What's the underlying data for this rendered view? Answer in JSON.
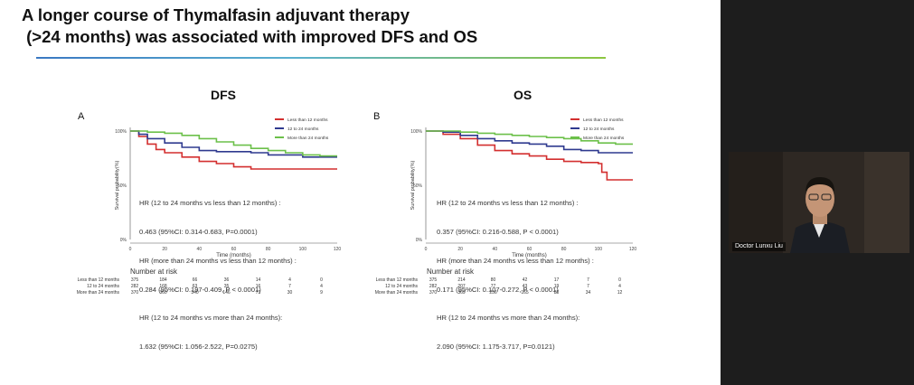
{
  "slide": {
    "title_line1": "A longer course of Thymalfasin adjuvant therapy",
    "title_line2": " (>24 months) was associated with improved DFS and OS"
  },
  "colors": {
    "less_than_12": "#d32f2f",
    "12_to_24": "#2f3a8f",
    "more_than_24": "#6cc04a",
    "rule_start": "#3a78c2",
    "rule_end": "#8cc63f"
  },
  "dfs": {
    "panel_title": "DFS",
    "letter": "A",
    "hr_lines": [
      "HR (12 to 24 months vs less than 12 months) :",
      "0.463 (95%CI: 0.314-0.683, P=0.0001)",
      "HR (more than 24 months vs less than 12 months) :",
      "0.284 (95%CI: 0.197-0.409, P < 0.0001)",
      "HR (12 to 24 months vs more than 24 months):",
      "1.632 (95%CI: 1.056-2.522, P=0.0275)"
    ],
    "risk_title": "Number at risk",
    "risk_labels": [
      "Less than 12 months",
      "12 to 24 months",
      "More than 24 months"
    ],
    "risk_rows": [
      [
        "375",
        "184",
        "66",
        "36",
        "14",
        "4",
        "0"
      ],
      [
        "282",
        "168",
        "63",
        "35",
        "16",
        "7",
        "4"
      ],
      [
        "370",
        "360",
        "340",
        "146",
        "71",
        "30",
        "9"
      ]
    ]
  },
  "os": {
    "panel_title": "OS",
    "letter": "B",
    "hr_lines": [
      "HR (12 to 24 months vs less than 12 months) :",
      "0.357 (95%CI: 0.216-0.588, P < 0.0001)",
      "HR (more than 24 months vs less than 12 months) :",
      "0.171 (95%CI: 0.107-0.272, P < 0.0001)",
      "HR (12 to 24 months vs more than 24 months):",
      "2.090 (95%CI: 1.175-3.717, P=0.0121)"
    ],
    "risk_title": "Number at risk",
    "risk_labels": [
      "Less than 12 months",
      "12 to 24 months",
      "More than 24 months"
    ],
    "risk_rows": [
      [
        "375",
        "214",
        "80",
        "42",
        "17",
        "7",
        "0"
      ],
      [
        "282",
        "207",
        "77",
        "43",
        "19",
        "7",
        "4"
      ],
      [
        "370",
        "369",
        "256",
        "165",
        "80",
        "34",
        "12"
      ]
    ]
  },
  "chart_data": [
    {
      "type": "line",
      "title": "DFS",
      "xlabel": "Time (months)",
      "ylabel": "Survival probability(%)",
      "xlim": [
        0,
        120
      ],
      "x_ticks": [
        0,
        20,
        40,
        60,
        80,
        100,
        120
      ],
      "y_ticks": [
        "0%",
        "50%",
        "100%"
      ],
      "legend": [
        "Less than 12 months",
        "12 to 24 months",
        "More than 24 months"
      ],
      "legend_position": "top-right",
      "series": [
        {
          "name": "Less than 12 months",
          "color": "#d32f2f",
          "x": [
            0,
            5,
            10,
            15,
            20,
            30,
            40,
            50,
            60,
            70,
            90,
            110,
            120
          ],
          "y": [
            100,
            95,
            88,
            83,
            80,
            76,
            72,
            70,
            67,
            65,
            65,
            65,
            65
          ]
        },
        {
          "name": "12 to 24 months",
          "color": "#2f3a8f",
          "x": [
            0,
            5,
            10,
            20,
            30,
            40,
            50,
            60,
            70,
            80,
            90,
            100,
            110,
            120
          ],
          "y": [
            100,
            97,
            93,
            89,
            85,
            82,
            81,
            81,
            80,
            78,
            78,
            76,
            76,
            76
          ]
        },
        {
          "name": "More than 24 months",
          "color": "#6cc04a",
          "x": [
            0,
            10,
            20,
            30,
            40,
            50,
            60,
            70,
            80,
            90,
            100,
            110,
            120
          ],
          "y": [
            100,
            99,
            98,
            96,
            93,
            90,
            87,
            84,
            82,
            80,
            78,
            77,
            77
          ]
        }
      ]
    },
    {
      "type": "line",
      "title": "OS",
      "xlabel": "Time (months)",
      "ylabel": "Survival probability(%)",
      "xlim": [
        0,
        120
      ],
      "x_ticks": [
        0,
        20,
        40,
        60,
        80,
        100,
        120
      ],
      "y_ticks": [
        "0%",
        "50%",
        "100%"
      ],
      "legend": [
        "Less than 12 months",
        "12 to 24 months",
        "More than 24 months"
      ],
      "legend_position": "top-right",
      "series": [
        {
          "name": "Less than 12 months",
          "color": "#d32f2f",
          "x": [
            0,
            10,
            20,
            30,
            40,
            50,
            60,
            70,
            80,
            90,
            100,
            102,
            105,
            110,
            120
          ],
          "y": [
            100,
            97,
            93,
            87,
            82,
            79,
            77,
            74,
            72,
            71,
            70,
            62,
            55,
            55,
            55
          ]
        },
        {
          "name": "12 to 24 months",
          "color": "#2f3a8f",
          "x": [
            0,
            10,
            20,
            30,
            40,
            50,
            60,
            70,
            80,
            90,
            100,
            110,
            120
          ],
          "y": [
            100,
            99,
            96,
            93,
            91,
            89,
            88,
            86,
            83,
            82,
            80,
            80,
            80
          ]
        },
        {
          "name": "More than 24 months",
          "color": "#6cc04a",
          "x": [
            0,
            10,
            20,
            30,
            40,
            50,
            60,
            70,
            80,
            90,
            100,
            110,
            120
          ],
          "y": [
            100,
            100,
            99,
            98,
            97,
            96,
            95,
            94,
            93,
            91,
            89,
            88,
            88
          ]
        }
      ]
    }
  ],
  "video": {
    "speaker_name": "Doctor Lunxu Liu"
  }
}
